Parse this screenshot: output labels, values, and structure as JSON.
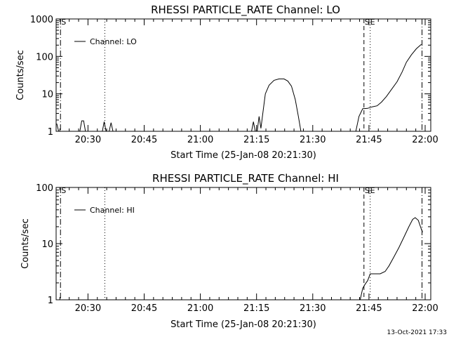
{
  "chart_data": [
    {
      "type": "line",
      "title": "RHESSI PARTICLE_RATE Channel: LO",
      "xlabel": "Start Time (25-Jan-08 20:21:30)",
      "ylabel": "Counts/sec",
      "y_scale": "log",
      "ylim": [
        1,
        1000
      ],
      "y_ticks": [
        1,
        10,
        100,
        1000
      ],
      "y_tick_labels": [
        "1",
        "10",
        "100",
        "1000"
      ],
      "xlim": [
        "20:21:30",
        "22:01:30"
      ],
      "x_ticks": [
        "20:30",
        "20:45",
        "21:00",
        "21:15",
        "21:30",
        "21:45",
        "22:00"
      ],
      "grid": false,
      "legend": {
        "position": "top-left",
        "entries": [
          "Channel: LO"
        ]
      },
      "annotations": [
        {
          "text": "S",
          "time": "20:22:40",
          "style": "dash-dot"
        },
        {
          "text": "",
          "time": "20:34:30",
          "style": "dotted"
        },
        {
          "text": "S",
          "time": "21:43:40",
          "style": "dashed"
        },
        {
          "text": "E",
          "time": "21:45:20",
          "style": "dotted"
        },
        {
          "text": "",
          "time": "21:59:10",
          "style": "dash-dot"
        }
      ],
      "series": [
        {
          "name": "Channel: LO",
          "points": [
            [
              "20:21:40",
              1.6
            ],
            [
              "20:22:10",
              1.0
            ],
            [
              "20:27:50",
              1.0
            ],
            [
              "20:28:20",
              1.9
            ],
            [
              "20:28:50",
              1.9
            ],
            [
              "20:29:20",
              1.0
            ],
            [
              "20:33:50",
              1.0
            ],
            [
              "20:34:20",
              1.8
            ],
            [
              "20:34:50",
              1.0
            ],
            [
              "20:35:40",
              1.0
            ],
            [
              "20:36:10",
              1.7
            ],
            [
              "20:36:40",
              1.0
            ],
            [
              "21:13:40",
              1.0
            ],
            [
              "21:14:10",
              1.8
            ],
            [
              "21:14:40",
              1.0
            ],
            [
              "21:15:10",
              1.0
            ],
            [
              "21:15:40",
              2.5
            ],
            [
              "21:16:10",
              1.2
            ],
            [
              "21:16:40",
              3.0
            ],
            [
              "21:17:20",
              10
            ],
            [
              "21:18:20",
              17
            ],
            [
              "21:19:40",
              23
            ],
            [
              "21:21:00",
              25
            ],
            [
              "21:22:20",
              25
            ],
            [
              "21:23:20",
              22
            ],
            [
              "21:24:20",
              16
            ],
            [
              "21:25:20",
              7
            ],
            [
              "21:26:10",
              2.5
            ],
            [
              "21:26:50",
              1.0
            ],
            [
              "21:41:30",
              1.0
            ],
            [
              "21:42:20",
              2.5
            ],
            [
              "21:43:20",
              4.0
            ],
            [
              "21:44:40",
              4.1
            ],
            [
              "21:45:50",
              4.5
            ],
            [
              "21:47:10",
              4.8
            ],
            [
              "21:48:20",
              6.0
            ],
            [
              "21:49:40",
              8.5
            ],
            [
              "21:51:00",
              13
            ],
            [
              "21:52:30",
              21
            ],
            [
              "21:53:50",
              38
            ],
            [
              "21:55:00",
              70
            ],
            [
              "21:56:20",
              110
            ],
            [
              "21:57:40",
              160
            ],
            [
              "21:59:00",
              210
            ]
          ]
        }
      ]
    },
    {
      "type": "line",
      "title": "RHESSI PARTICLE_RATE Channel: HI",
      "xlabel": "Start Time (25-Jan-08 20:21:30)",
      "ylabel": "Counts/sec",
      "y_scale": "log",
      "ylim": [
        1,
        100
      ],
      "y_ticks": [
        1,
        10,
        100
      ],
      "y_tick_labels": [
        "1",
        "10",
        "100"
      ],
      "xlim": [
        "20:21:30",
        "22:01:30"
      ],
      "x_ticks": [
        "20:30",
        "20:45",
        "21:00",
        "21:15",
        "21:30",
        "21:45",
        "22:00"
      ],
      "grid": false,
      "legend": {
        "position": "top-left",
        "entries": [
          "Channel: HI"
        ]
      },
      "annotations": [
        {
          "text": "S",
          "time": "20:22:40",
          "style": "dash-dot"
        },
        {
          "text": "",
          "time": "20:34:30",
          "style": "dotted"
        },
        {
          "text": "S",
          "time": "21:43:40",
          "style": "dashed"
        },
        {
          "text": "E",
          "time": "21:45:20",
          "style": "dotted"
        },
        {
          "text": "",
          "time": "21:59:10",
          "style": "dash-dot"
        }
      ],
      "series": [
        {
          "name": "Channel: HI",
          "points": [
            [
              "21:42:40",
              1.0
            ],
            [
              "21:43:20",
              1.6
            ],
            [
              "21:44:00",
              1.9
            ],
            [
              "21:44:40",
              2.2
            ],
            [
              "21:45:20",
              2.9
            ],
            [
              "21:46:40",
              2.9
            ],
            [
              "21:48:00",
              2.9
            ],
            [
              "21:49:20",
              3.2
            ],
            [
              "21:50:20",
              4.0
            ],
            [
              "21:51:40",
              5.8
            ],
            [
              "21:53:00",
              8.5
            ],
            [
              "21:54:20",
              13
            ],
            [
              "21:55:40",
              20
            ],
            [
              "21:56:40",
              27
            ],
            [
              "21:57:20",
              29
            ],
            [
              "21:58:10",
              26
            ],
            [
              "21:59:00",
              18
            ],
            [
              "21:59:20",
              16
            ]
          ]
        }
      ]
    }
  ],
  "footer": "13-Oct-2021 17:33"
}
